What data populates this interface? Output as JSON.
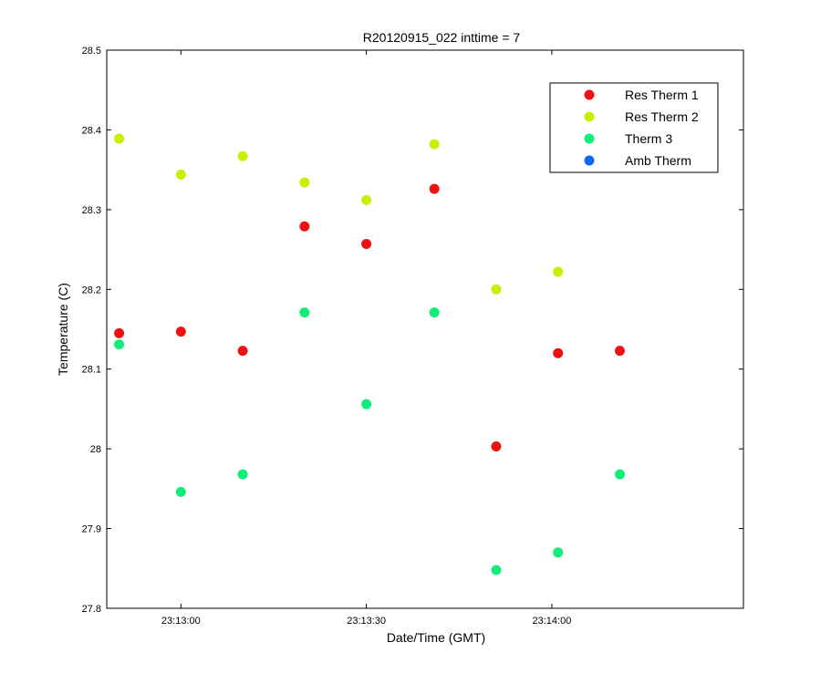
{
  "chart_data": {
    "type": "scatter",
    "title": "R20120915_022 inttime = 7",
    "xlabel": "Date/Time (GMT)",
    "ylabel": "Temperature (C)",
    "xlim": [
      "23:12:48",
      "23:14:31"
    ],
    "ylim": [
      27.8,
      28.5
    ],
    "x_ticks": [
      "23:13:00",
      "23:13:30",
      "23:14:00"
    ],
    "y_ticks": [
      "27.8",
      "27.9",
      "28",
      "28.1",
      "28.2",
      "28.3",
      "28.4",
      "28.5"
    ],
    "grid": false,
    "legend_position": "top-right",
    "series": [
      {
        "name": "Res Therm 1",
        "color": "#ee1111",
        "points": [
          {
            "x": "23:12:50",
            "y": 28.145
          },
          {
            "x": "23:13:00",
            "y": 28.147
          },
          {
            "x": "23:13:10",
            "y": 28.123
          },
          {
            "x": "23:13:20",
            "y": 28.279
          },
          {
            "x": "23:13:30",
            "y": 28.257
          },
          {
            "x": "23:13:41",
            "y": 28.326
          },
          {
            "x": "23:13:51",
            "y": 28.003
          },
          {
            "x": "23:14:01",
            "y": 28.12
          },
          {
            "x": "23:14:11",
            "y": 28.123
          }
        ]
      },
      {
        "name": "Res Therm 2",
        "color": "#ccee00",
        "points": [
          {
            "x": "23:12:50",
            "y": 28.389
          },
          {
            "x": "23:13:00",
            "y": 28.344
          },
          {
            "x": "23:13:10",
            "y": 28.367
          },
          {
            "x": "23:13:20",
            "y": 28.334
          },
          {
            "x": "23:13:30",
            "y": 28.312
          },
          {
            "x": "23:13:41",
            "y": 28.382
          },
          {
            "x": "23:13:51",
            "y": 28.2
          },
          {
            "x": "23:14:01",
            "y": 28.222
          }
        ]
      },
      {
        "name": "Therm 3",
        "color": "#11ee77",
        "points": [
          {
            "x": "23:12:50",
            "y": 28.131
          },
          {
            "x": "23:13:00",
            "y": 27.946
          },
          {
            "x": "23:13:10",
            "y": 27.968
          },
          {
            "x": "23:13:20",
            "y": 28.171
          },
          {
            "x": "23:13:30",
            "y": 28.056
          },
          {
            "x": "23:13:41",
            "y": 28.171
          },
          {
            "x": "23:13:51",
            "y": 27.848
          },
          {
            "x": "23:14:01",
            "y": 27.87
          },
          {
            "x": "23:14:11",
            "y": 27.968
          }
        ]
      },
      {
        "name": "Amb Therm",
        "color": "#1166ee",
        "points": []
      }
    ]
  }
}
